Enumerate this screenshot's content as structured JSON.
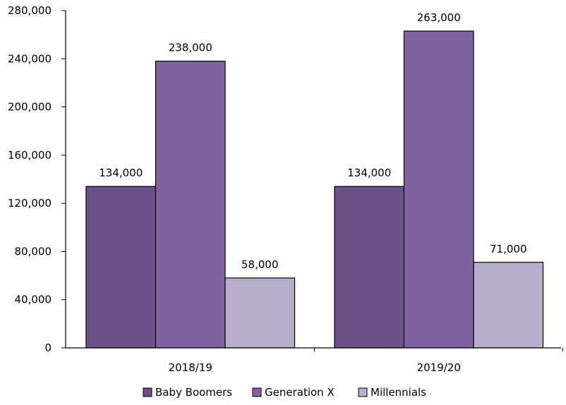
{
  "chart_data": {
    "type": "bar",
    "title": "",
    "xlabel": "",
    "ylabel": "",
    "categories": [
      "2018/19",
      "2019/20"
    ],
    "series": [
      {
        "name": "Baby Boomers",
        "values": [
          134000,
          134000
        ],
        "color": "#6a5189"
      },
      {
        "name": "Generation X",
        "values": [
          238000,
          263000
        ],
        "color": "#8064a2"
      },
      {
        "name": "Millennials",
        "values": [
          58000,
          71000
        ],
        "color": "#b9aec9"
      }
    ],
    "data_labels": [
      [
        "134,000",
        "134,000"
      ],
      [
        "238,000",
        "263,000"
      ],
      [
        "58,000",
        "71,000"
      ]
    ],
    "ylim": [
      0,
      280000
    ],
    "yticks": [
      0,
      40000,
      80000,
      120000,
      160000,
      200000,
      240000,
      280000
    ],
    "ytick_labels": [
      "0",
      "40,000",
      "80,000",
      "120,000",
      "160,000",
      "200,000",
      "240,000",
      "280,000"
    ],
    "grid": false,
    "legend": "bottom"
  }
}
